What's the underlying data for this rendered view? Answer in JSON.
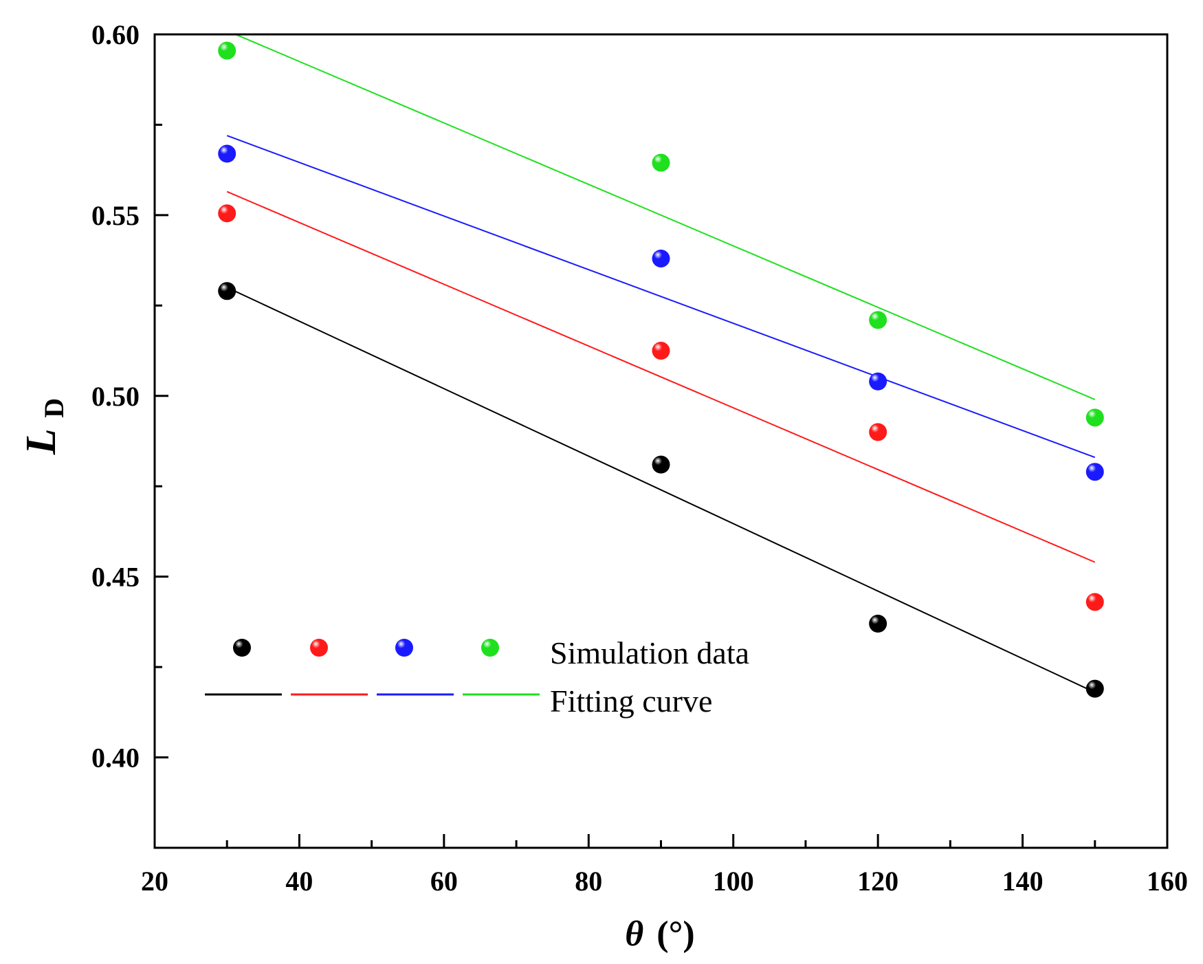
{
  "chart_data": {
    "type": "scatter",
    "title": "",
    "xlabel": {
      "symbol": "θ",
      "unit": "(°)"
    },
    "ylabel": {
      "symbol": "L",
      "subscript": "D"
    },
    "xlim": [
      20,
      160
    ],
    "ylim": [
      0.375,
      0.6
    ],
    "x_ticks": [
      20,
      40,
      60,
      80,
      100,
      120,
      140,
      160
    ],
    "x_tick_labels": [
      "20",
      "40",
      "60",
      "80",
      "100",
      "120",
      "140",
      "160"
    ],
    "y_ticks": [
      0.4,
      0.45,
      0.5,
      0.55,
      0.6
    ],
    "y_tick_labels": [
      "0.40",
      "0.45",
      "0.50",
      "0.55",
      "0.60"
    ],
    "grid": false,
    "legend": {
      "position": "bottom-left",
      "entries": [
        {
          "label": "Simulation data",
          "kind": "markers"
        },
        {
          "label": "Fitting curve",
          "kind": "lines"
        }
      ]
    },
    "series": [
      {
        "name": "black",
        "color": "#000000",
        "x": [
          30,
          90,
          120,
          150
        ],
        "y": [
          0.529,
          0.481,
          0.437,
          0.419
        ],
        "fit": {
          "x": [
            30,
            150
          ],
          "y": [
            0.53,
            0.418
          ]
        }
      },
      {
        "name": "red",
        "color": "#ff1a1a",
        "x": [
          30,
          90,
          120,
          150
        ],
        "y": [
          0.5505,
          0.5125,
          0.49,
          0.443
        ],
        "fit": {
          "x": [
            30,
            150
          ],
          "y": [
            0.5565,
            0.454
          ]
        }
      },
      {
        "name": "blue",
        "color": "#1a1aff",
        "x": [
          30,
          90,
          120,
          150
        ],
        "y": [
          0.567,
          0.538,
          0.504,
          0.479
        ],
        "fit": {
          "x": [
            30,
            150
          ],
          "y": [
            0.572,
            0.483
          ]
        }
      },
      {
        "name": "green",
        "color": "#1ee01e",
        "x": [
          30,
          90,
          120,
          150
        ],
        "y": [
          0.5955,
          0.5645,
          0.521,
          0.494
        ],
        "fit": {
          "x": [
            30,
            150
          ],
          "y": [
            0.601,
            0.499
          ]
        }
      }
    ]
  }
}
